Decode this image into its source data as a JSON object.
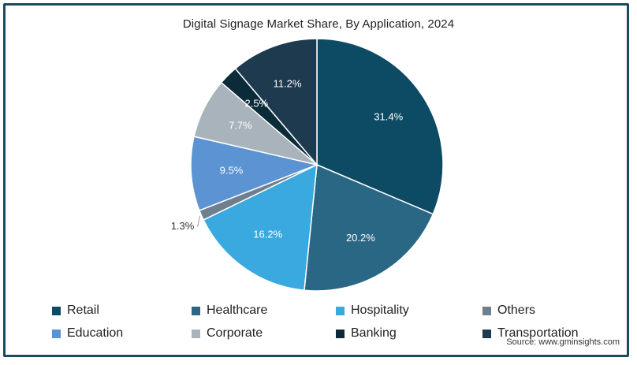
{
  "chart_data": {
    "type": "pie",
    "title": "Digital Signage Market Share, By Application, 2024",
    "slices": [
      {
        "name": "Retail",
        "value": 31.4,
        "label": "31.4%",
        "color": "#0d4a63"
      },
      {
        "name": "Healthcare",
        "value": 20.2,
        "label": "20.2%",
        "color": "#2a6784"
      },
      {
        "name": "Hospitality",
        "value": 16.2,
        "label": "16.2%",
        "color": "#3aa9df"
      },
      {
        "name": "Others",
        "value": 1.3,
        "label": "1.3%",
        "color": "#6f7f8e"
      },
      {
        "name": "Education",
        "value": 9.5,
        "label": "9.5%",
        "color": "#5b93d3"
      },
      {
        "name": "Corporate",
        "value": 7.7,
        "label": "7.7%",
        "color": "#a8b3bb"
      },
      {
        "name": "Banking",
        "value": 2.5,
        "label": "2.5%",
        "color": "#0b2b38"
      },
      {
        "name": "Transportation",
        "value": 11.2,
        "label": "11.2%",
        "color": "#1d3a4f"
      }
    ],
    "legend": {
      "placement": "bottom",
      "entries": [
        "Retail",
        "Healthcare",
        "Hospitality",
        "Others",
        "Education",
        "Corporate",
        "Banking",
        "Transportation"
      ]
    }
  },
  "source": "Source: www.gminsights.com"
}
